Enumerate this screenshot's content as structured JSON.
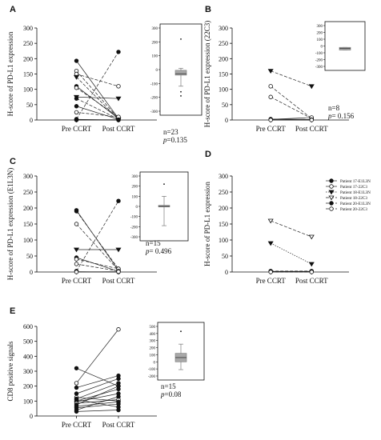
{
  "chart_data": [
    {
      "panel": "A",
      "type": "line",
      "ylabel": "H-score of PD-L1 expression",
      "xcategories": [
        "Pre CCRT",
        "Post CCRT"
      ],
      "ylim": [
        0,
        300
      ],
      "yticks": [
        0,
        50,
        100,
        150,
        200,
        250,
        300
      ],
      "series": [
        {
          "pre": 193,
          "post": 5,
          "style": "solid",
          "marker": "filled"
        },
        {
          "pre": 160,
          "post": 5,
          "style": "dashed",
          "marker": "open"
        },
        {
          "pre": 150,
          "post": 110,
          "style": "dashed",
          "marker": "open"
        },
        {
          "pre": 140,
          "post": 2,
          "style": "dashed",
          "marker": "tri"
        },
        {
          "pre": 110,
          "post": 5,
          "style": "solid",
          "marker": "filled"
        },
        {
          "pre": 105,
          "post": 10,
          "style": "dashed",
          "marker": "open"
        },
        {
          "pre": 75,
          "post": 70,
          "style": "solid",
          "marker": "tri"
        },
        {
          "pre": 70,
          "post": 3,
          "style": "dashed",
          "marker": "filled"
        },
        {
          "pre": 45,
          "post": 2,
          "style": "solid",
          "marker": "filled"
        },
        {
          "pre": 25,
          "post": 10,
          "style": "dashed",
          "marker": "open"
        },
        {
          "pre": 3,
          "post": 222,
          "style": "dashed",
          "marker": "filled"
        },
        {
          "pre": 2,
          "post": 0,
          "style": "solid",
          "marker": "open"
        },
        {
          "pre": 1,
          "post": 0,
          "style": "solid",
          "marker": "filled"
        },
        {
          "pre": 0,
          "post": 1,
          "style": "solid",
          "marker": "filled"
        }
      ],
      "inset": {
        "ylim": [
          -300,
          300
        ],
        "yticks": [
          -300,
          -200,
          -100,
          0,
          100,
          200,
          300
        ],
        "median": -30,
        "q1": -40,
        "q3": -5,
        "whisker_low": -120,
        "whisker_high": 10,
        "outliers": [
          220,
          -160,
          -190
        ],
        "n_text": "n=23",
        "p_label": "p",
        "p_value": "=0.135"
      }
    },
    {
      "panel": "B",
      "type": "line",
      "ylabel": "H-score of PD-L1 expression (22C3)",
      "xcategories": [
        "Pre CCRT",
        "Post CCRT"
      ],
      "ylim": [
        0,
        300
      ],
      "yticks": [
        0,
        50,
        100,
        150,
        200,
        250,
        300
      ],
      "series": [
        {
          "pre": 160,
          "post": 110,
          "style": "dashed",
          "marker": "tri"
        },
        {
          "pre": 110,
          "post": 5,
          "style": "dashed",
          "marker": "open"
        },
        {
          "pre": 75,
          "post": 5,
          "style": "dashed",
          "marker": "open"
        },
        {
          "pre": 3,
          "post": 2,
          "style": "solid",
          "marker": "filled"
        },
        {
          "pre": 2,
          "post": 8,
          "style": "solid",
          "marker": "open"
        },
        {
          "pre": 1,
          "post": 1,
          "style": "solid",
          "marker": "filled"
        },
        {
          "pre": 0,
          "post": 0,
          "style": "solid",
          "marker": "open"
        }
      ],
      "inset": {
        "ylim": [
          -300,
          300
        ],
        "yticks": [
          -300,
          -200,
          -100,
          0,
          100,
          200,
          300
        ],
        "median": -35,
        "q1": -60,
        "q3": -20,
        "whisker_low": -60,
        "whisker_high": -20,
        "outliers": [],
        "n_text": "n=8",
        "p_label": "p",
        "p_value": "= 0.156"
      }
    },
    {
      "panel": "C",
      "type": "line",
      "ylabel": "H-score of PD-L1 expression (E1L3N)",
      "xcategories": [
        "Pre CCRT",
        "Post CCRT"
      ],
      "ylim": [
        0,
        300
      ],
      "yticks": [
        0,
        50,
        100,
        150,
        200,
        250,
        300
      ],
      "series": [
        {
          "pre": 193,
          "post": 5,
          "style": "solid",
          "marker": "filled"
        },
        {
          "pre": 190,
          "post": 10,
          "style": "dashed",
          "marker": "filled"
        },
        {
          "pre": 150,
          "post": 5,
          "style": "dashed",
          "marker": "open"
        },
        {
          "pre": 70,
          "post": 70,
          "style": "solid",
          "marker": "tri"
        },
        {
          "pre": 45,
          "post": 2,
          "style": "solid",
          "marker": "filled"
        },
        {
          "pre": 40,
          "post": 10,
          "style": "dashed",
          "marker": "open"
        },
        {
          "pre": 25,
          "post": 3,
          "style": "dashed",
          "marker": "open"
        },
        {
          "pre": 3,
          "post": 222,
          "style": "dashed",
          "marker": "filled"
        },
        {
          "pre": 1,
          "post": 0,
          "style": "solid",
          "marker": "filled"
        },
        {
          "pre": 0,
          "post": 1,
          "style": "solid",
          "marker": "open"
        }
      ],
      "inset": {
        "ylim": [
          -300,
          300
        ],
        "yticks": [
          -300,
          -200,
          -100,
          0,
          100,
          200,
          300
        ],
        "median": 0,
        "q1": -5,
        "q3": 5,
        "whisker_low": -190,
        "whisker_high": 100,
        "outliers": [
          220
        ],
        "n_text": "n=15",
        "p_label": "p",
        "p_value": "= 0.496"
      }
    },
    {
      "panel": "D",
      "type": "line",
      "ylabel": "H-score of PD-L1 expression",
      "xcategories": [
        "Pre CCRT",
        "Post CCRT"
      ],
      "ylim": [
        0,
        300
      ],
      "yticks": [
        0,
        50,
        100,
        150,
        200,
        250,
        300
      ],
      "series": [
        {
          "name": "Patient 17-E1L3N",
          "pre": 2,
          "post": 2,
          "style": "solid",
          "marker": "filled"
        },
        {
          "name": "Patient 17-22C3",
          "pre": 1,
          "post": 1,
          "style": "solid",
          "marker": "open"
        },
        {
          "name": "Patient 18-E1L3N",
          "pre": 90,
          "post": 25,
          "style": "dotted",
          "marker": "tri"
        },
        {
          "name": "Patient 18-22C3",
          "pre": 160,
          "post": 110,
          "style": "dashed",
          "marker": "tri-open"
        },
        {
          "name": "Patient 20-E1L3N",
          "pre": 3,
          "post": 3,
          "style": "dashed",
          "marker": "filled"
        },
        {
          "name": "Patient 20-22C3",
          "pre": 0,
          "post": 0,
          "style": "dashed",
          "marker": "open"
        }
      ],
      "legend": "top-right"
    },
    {
      "panel": "E",
      "type": "line",
      "ylabel": "CD8 positive signals",
      "xcategories": [
        "Pre CCRT",
        "Post CCRT"
      ],
      "ylim": [
        0,
        600
      ],
      "yticks": [
        0,
        100,
        200,
        300,
        400,
        500,
        600
      ],
      "series": [
        {
          "pre": 320,
          "post": 200,
          "marker": "filled"
        },
        {
          "pre": 220,
          "post": 580,
          "marker": "open"
        },
        {
          "pre": 190,
          "post": 270,
          "marker": "filled"
        },
        {
          "pre": 150,
          "post": 250,
          "marker": "filled"
        },
        {
          "pre": 125,
          "post": 100,
          "marker": "open"
        },
        {
          "pre": 115,
          "post": 220,
          "marker": "filled"
        },
        {
          "pre": 110,
          "post": 60,
          "marker": "filled"
        },
        {
          "pre": 100,
          "post": 180,
          "marker": "filled"
        },
        {
          "pre": 95,
          "post": 150,
          "marker": "filled"
        },
        {
          "pre": 85,
          "post": 110,
          "marker": "open"
        },
        {
          "pre": 75,
          "post": 200,
          "marker": "filled"
        },
        {
          "pre": 65,
          "post": 95,
          "marker": "filled"
        },
        {
          "pre": 55,
          "post": 80,
          "marker": "filled"
        },
        {
          "pre": 40,
          "post": 130,
          "marker": "filled"
        },
        {
          "pre": 30,
          "post": 40,
          "marker": "filled"
        }
      ],
      "inset": {
        "ylim": [
          -200,
          500
        ],
        "yticks": [
          -200,
          -100,
          0,
          100,
          200,
          300,
          400,
          500
        ],
        "median": 60,
        "q1": 0,
        "q3": 120,
        "whisker_low": -110,
        "whisker_high": 250,
        "outliers": [
          430
        ],
        "n_text": "n=15",
        "p_label": "p",
        "p_value": "=0.08"
      }
    }
  ]
}
